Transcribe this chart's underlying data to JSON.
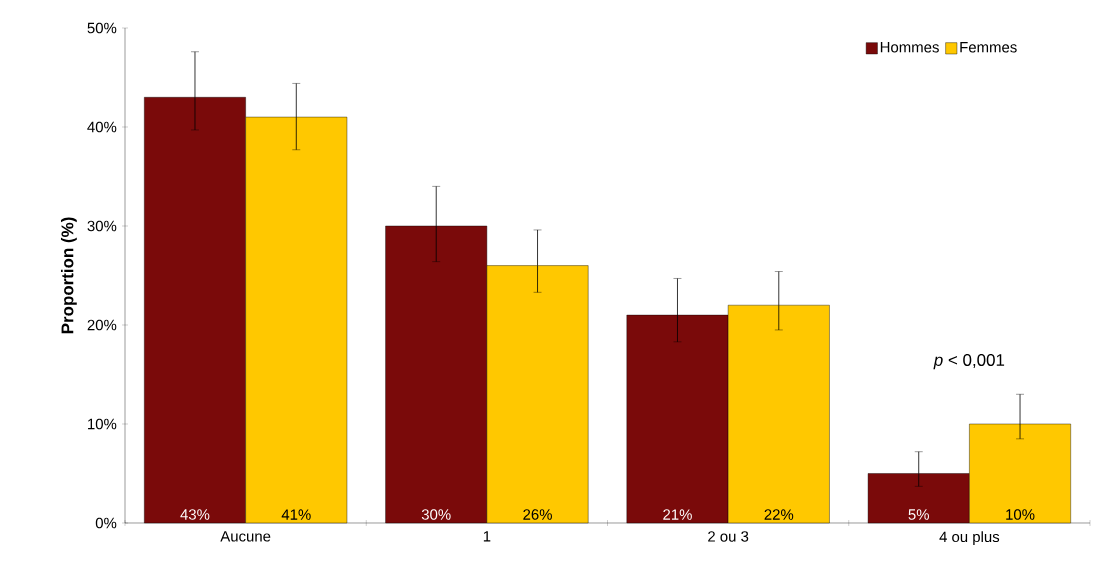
{
  "chart_data": {
    "type": "bar",
    "ylabel": "Proportion (%)",
    "categories": [
      "Aucune",
      "1",
      "2 ou 3",
      "4 ou plus"
    ],
    "series": [
      {
        "name": "Hommes",
        "color": "#7a0a0a",
        "values": [
          43,
          30,
          21,
          5
        ],
        "errors": [
          [
            39.7,
            47.6
          ],
          [
            26.4,
            34.0
          ],
          [
            18.3,
            24.7
          ],
          [
            3.7,
            7.2
          ]
        ],
        "value_labels": [
          "43%",
          "30%",
          "21%",
          "5%"
        ]
      },
      {
        "name": "Femmes",
        "color": "#ffc800",
        "values": [
          41,
          26,
          22,
          10
        ],
        "errors": [
          [
            37.7,
            44.4
          ],
          [
            23.3,
            29.6
          ],
          [
            19.5,
            25.4
          ],
          [
            8.5,
            13.0
          ]
        ],
        "value_labels": [
          "41%",
          "26%",
          "22%",
          "10%"
        ]
      }
    ],
    "ylim": [
      0,
      50
    ],
    "yticks": [
      {
        "value": 0,
        "label": "0%"
      },
      {
        "value": 10,
        "label": "10%"
      },
      {
        "value": 20,
        "label": "20%"
      },
      {
        "value": 30,
        "label": "30%"
      },
      {
        "value": 40,
        "label": "40%"
      },
      {
        "value": 50,
        "label": "50%"
      }
    ],
    "annotations": [
      "*p* < 0,001"
    ],
    "legend": "top right",
    "grid": false
  }
}
